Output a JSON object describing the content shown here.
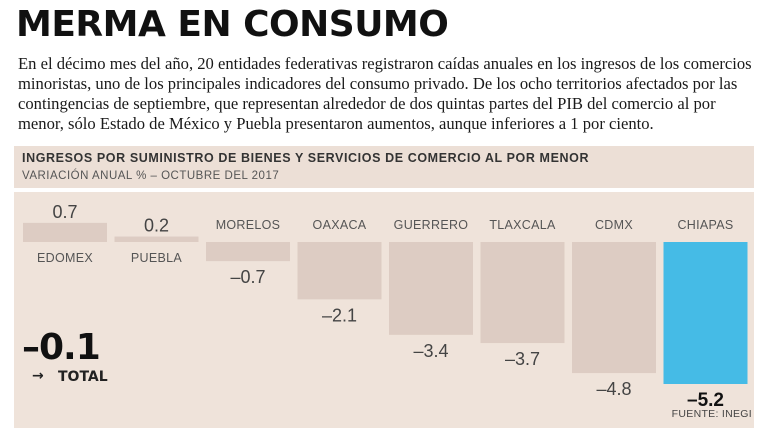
{
  "header": {
    "title": "MERMA EN CONSUMO",
    "intro": "En el décimo mes del año, 20 entidades federativas registraron caídas anuales en los ingresos de los comercios minoristas, uno de los principales indicadores del consumo privado. De los ocho territorios afectados por las contingencias de septiembre, que representan alrededor de dos quintas partes del PIB del comercio al por menor, sólo Estado de México y Puebla presentaron aumentos, aunque inferiores a 1 por ciento."
  },
  "chart_data": {
    "type": "bar",
    "title": "INGRESOS POR SUMINISTRO DE BIENES Y SERVICIOS DE COMERCIO AL POR MENOR",
    "subtitle": "VARIACIÓN ANUAL % – OCTUBRE DEL 2017",
    "categories": [
      "EDOMEX",
      "PUEBLA",
      "MORELOS",
      "OAXACA",
      "GUERRERO",
      "TLAXCALA",
      "CDMX",
      "CHIAPAS"
    ],
    "values": [
      0.7,
      0.2,
      -0.7,
      -2.1,
      -3.4,
      -3.7,
      -4.8,
      -5.2
    ],
    "value_labels": [
      "0.7",
      "0.2",
      "–0.7",
      "–2.1",
      "–3.4",
      "–3.7",
      "–4.8",
      "–5.2"
    ],
    "highlight_category": "CHIAPAS",
    "ylim": [
      -5.2,
      0.7
    ],
    "grid": false,
    "legend": "none",
    "colors": {
      "bar": "#ddccc3",
      "highlight": "#45bbe6",
      "background": "#efe3da",
      "text": "#444444"
    },
    "xlabel": "",
    "ylabel": ""
  },
  "total": {
    "value": "–0.1",
    "arrow": "→",
    "label": "TOTAL"
  },
  "source": "FUENTE: INEGI"
}
